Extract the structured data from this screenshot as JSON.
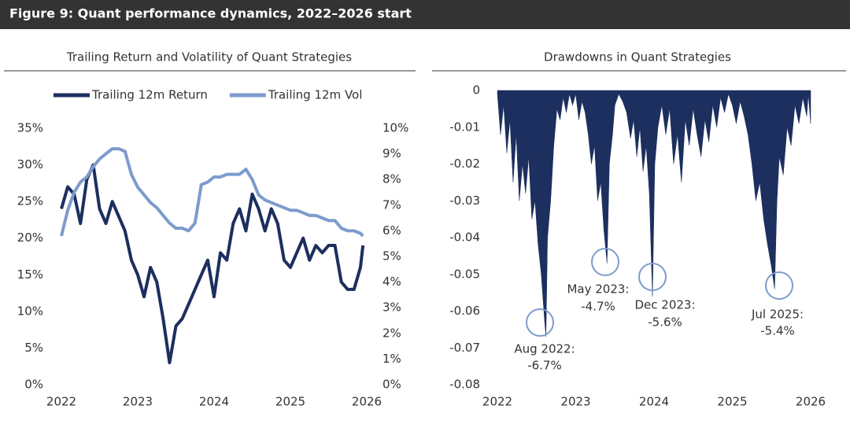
{
  "header": {
    "title": "Figure 9: Quant performance dynamics, 2022–2026 start"
  },
  "chart_data": [
    {
      "type": "line",
      "title": "Trailing Return and Volatility of Quant Strategies",
      "legend": "top",
      "x": [
        2022.0,
        2022.083,
        2022.167,
        2022.25,
        2022.333,
        2022.417,
        2022.5,
        2022.583,
        2022.667,
        2022.75,
        2022.833,
        2022.917,
        2023.0,
        2023.083,
        2023.167,
        2023.25,
        2023.333,
        2023.417,
        2023.5,
        2023.583,
        2023.667,
        2023.75,
        2023.833,
        2023.917,
        2024.0,
        2024.083,
        2024.167,
        2024.25,
        2024.333,
        2024.417,
        2024.5,
        2024.583,
        2024.667,
        2024.75,
        2024.833,
        2024.917,
        2025.0,
        2025.083,
        2025.167,
        2025.25,
        2025.333,
        2025.417,
        2025.5,
        2025.583,
        2025.667,
        2025.75,
        2025.833,
        2025.917,
        2025.95
      ],
      "series": [
        {
          "name": "Trailing 12m Return",
          "color": "#1c2f5e",
          "values": [
            24,
            27,
            26,
            22,
            28,
            30,
            24,
            22,
            25,
            23,
            21,
            17,
            15,
            12,
            16,
            14,
            9,
            3,
            8,
            9,
            11,
            13,
            15,
            17,
            12,
            18,
            17,
            22,
            24,
            21,
            26,
            24,
            21,
            24,
            22,
            17,
            16,
            18,
            20,
            17,
            19,
            18,
            19,
            19,
            14,
            13,
            13,
            16,
            19
          ]
        },
        {
          "name": "Trailing 12m Vol",
          "color": "#7d9bcc",
          "axis": "y2",
          "values": [
            5.8,
            6.8,
            7.5,
            7.9,
            8.1,
            8.5,
            8.8,
            9.0,
            9.2,
            9.2,
            9.1,
            8.2,
            7.7,
            7.4,
            7.1,
            6.9,
            6.6,
            6.3,
            6.1,
            6.1,
            6.0,
            6.3,
            7.8,
            7.9,
            8.1,
            8.1,
            8.2,
            8.2,
            8.2,
            8.4,
            8.0,
            7.4,
            7.2,
            7.1,
            7.0,
            6.9,
            6.8,
            6.8,
            6.7,
            6.6,
            6.6,
            6.5,
            6.4,
            6.4,
            6.1,
            6.0,
            6.0,
            5.9,
            5.8
          ]
        }
      ],
      "xlim": [
        2022,
        2026
      ],
      "xticks": [
        2022,
        2023,
        2024,
        2025,
        2026
      ],
      "ylim": [
        0,
        35
      ],
      "yticks": [
        {
          "value": 0,
          "label": "0%"
        },
        {
          "value": 5,
          "label": "5%"
        },
        {
          "value": 10,
          "label": "10%"
        },
        {
          "value": 15,
          "label": "15%"
        },
        {
          "value": 20,
          "label": "20%"
        },
        {
          "value": 25,
          "label": "25%"
        },
        {
          "value": 30,
          "label": "30%"
        },
        {
          "value": 35,
          "label": "35%"
        }
      ],
      "y2lim": [
        0,
        10
      ],
      "y2ticks": [
        {
          "value": 0,
          "label": "0%"
        },
        {
          "value": 1,
          "label": "1%"
        },
        {
          "value": 2,
          "label": "2%"
        },
        {
          "value": 3,
          "label": "3%"
        },
        {
          "value": 4,
          "label": "4%"
        },
        {
          "value": 5,
          "label": "5%"
        },
        {
          "value": 6,
          "label": "6%"
        },
        {
          "value": 7,
          "label": "7%"
        },
        {
          "value": 8,
          "label": "8%"
        },
        {
          "value": 9,
          "label": "9%"
        },
        {
          "value": 10,
          "label": "10%"
        }
      ]
    },
    {
      "type": "area",
      "title": "Drawdowns in Quant Strategies",
      "x": [
        2022.0,
        2022.04,
        2022.08,
        2022.12,
        2022.16,
        2022.2,
        2022.24,
        2022.28,
        2022.32,
        2022.36,
        2022.4,
        2022.44,
        2022.48,
        2022.52,
        2022.56,
        2022.6,
        2022.62,
        2022.64,
        2022.68,
        2022.72,
        2022.76,
        2022.8,
        2022.84,
        2022.88,
        2022.92,
        2022.96,
        2023.0,
        2023.04,
        2023.08,
        2023.12,
        2023.16,
        2023.2,
        2023.24,
        2023.28,
        2023.32,
        2023.36,
        2023.4,
        2023.43,
        2023.47,
        2023.5,
        2023.55,
        2023.6,
        2023.65,
        2023.7,
        2023.74,
        2023.78,
        2023.82,
        2023.86,
        2023.9,
        2023.94,
        2023.98,
        2024.01,
        2024.05,
        2024.1,
        2024.15,
        2024.2,
        2024.25,
        2024.3,
        2024.35,
        2024.4,
        2024.45,
        2024.5,
        2024.55,
        2024.6,
        2024.65,
        2024.7,
        2024.75,
        2024.8,
        2024.85,
        2024.9,
        2024.95,
        2025.0,
        2025.05,
        2025.1,
        2025.15,
        2025.2,
        2025.25,
        2025.3,
        2025.35,
        2025.4,
        2025.45,
        2025.5,
        2025.54,
        2025.57,
        2025.6,
        2025.65,
        2025.7,
        2025.75,
        2025.8,
        2025.85,
        2025.9,
        2025.95,
        2025.97,
        2026.0
      ],
      "series": [
        {
          "name": "Drawdown",
          "color": "#1c2f5e",
          "values": [
            -0.001,
            -0.012,
            -0.004,
            -0.017,
            -0.008,
            -0.025,
            -0.012,
            -0.03,
            -0.02,
            -0.028,
            -0.018,
            -0.035,
            -0.03,
            -0.042,
            -0.05,
            -0.062,
            -0.067,
            -0.04,
            -0.03,
            -0.015,
            -0.005,
            -0.008,
            -0.002,
            -0.006,
            -0.001,
            -0.004,
            -0.001,
            -0.008,
            -0.003,
            -0.006,
            -0.012,
            -0.02,
            -0.015,
            -0.03,
            -0.025,
            -0.038,
            -0.047,
            -0.02,
            -0.012,
            -0.004,
            -0.001,
            -0.003,
            -0.006,
            -0.013,
            -0.008,
            -0.018,
            -0.01,
            -0.022,
            -0.015,
            -0.028,
            -0.056,
            -0.02,
            -0.01,
            -0.004,
            -0.012,
            -0.005,
            -0.02,
            -0.012,
            -0.025,
            -0.008,
            -0.015,
            -0.005,
            -0.012,
            -0.018,
            -0.008,
            -0.014,
            -0.004,
            -0.01,
            -0.002,
            -0.006,
            -0.001,
            -0.004,
            -0.009,
            -0.003,
            -0.007,
            -0.012,
            -0.02,
            -0.03,
            -0.025,
            -0.035,
            -0.042,
            -0.048,
            -0.054,
            -0.03,
            -0.018,
            -0.023,
            -0.01,
            -0.015,
            -0.004,
            -0.009,
            -0.002,
            -0.007,
            -0.001,
            -0.009
          ]
        }
      ],
      "annotations": [
        [
          "Aug 2022:",
          "-6.7%"
        ],
        [
          "May 2023:",
          "-4.7%"
        ],
        [
          "Dec 2023:",
          "-5.6%"
        ],
        [
          "Jul 2025:",
          "-5.4%"
        ]
      ],
      "xlim": [
        2022,
        2026
      ],
      "xticks": [
        2022,
        2023,
        2024,
        2025,
        2026
      ],
      "ylim": [
        -0.08,
        0
      ],
      "yticks": [
        0,
        -0.01,
        -0.02,
        -0.03,
        -0.04,
        -0.05,
        -0.06,
        -0.07,
        -0.08
      ]
    }
  ]
}
